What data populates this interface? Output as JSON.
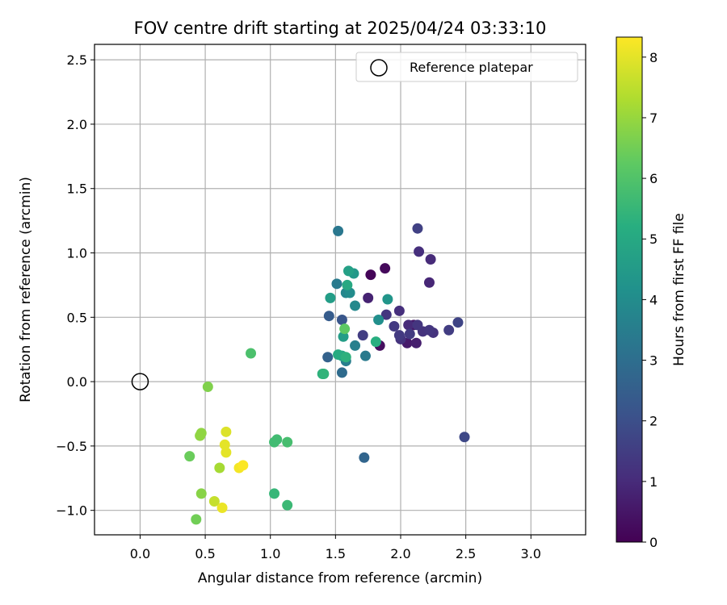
{
  "chart_data": {
    "type": "scatter",
    "title": "FOV centre drift starting at 2025/04/24 03:33:10",
    "xlabel": "Angular distance from reference (arcmin)",
    "ylabel": "Rotation from reference (arcmin)",
    "xlim": [
      -0.35,
      3.42
    ],
    "ylim": [
      -1.19,
      2.62
    ],
    "xticks": [
      0.0,
      0.5,
      1.0,
      1.5,
      2.0,
      2.5,
      3.0
    ],
    "xtick_labels": [
      "0.0",
      "0.5",
      "1.0",
      "1.5",
      "2.0",
      "2.5",
      "3.0"
    ],
    "yticks": [
      -1.0,
      -0.5,
      0.0,
      0.5,
      1.0,
      1.5,
      2.0,
      2.5
    ],
    "ytick_labels": [
      "−1.0",
      "−0.5",
      "0.0",
      "0.5",
      "1.0",
      "1.5",
      "2.0",
      "2.5"
    ],
    "grid": true,
    "legend": {
      "position": "top-right",
      "entries": [
        "Reference platepar"
      ]
    },
    "reference_point": {
      "x": 0.0,
      "y": 0.0,
      "label": "Reference platepar"
    },
    "colorbar": {
      "label": "Hours from first FF file",
      "colormap": "viridis",
      "min": 0,
      "max": 8.33,
      "ticks": [
        0,
        1,
        2,
        3,
        4,
        5,
        6,
        7,
        8
      ],
      "tick_labels": [
        "0",
        "1",
        "2",
        "3",
        "4",
        "5",
        "6",
        "7",
        "8"
      ]
    },
    "points": [
      {
        "x": 1.77,
        "y": 0.83,
        "c": 0.1
      },
      {
        "x": 1.88,
        "y": 0.88,
        "c": 0.2
      },
      {
        "x": 1.84,
        "y": 0.28,
        "c": 0.3
      },
      {
        "x": 2.1,
        "y": 0.44,
        "c": 0.5
      },
      {
        "x": 2.05,
        "y": 0.3,
        "c": 0.6
      },
      {
        "x": 2.12,
        "y": 0.3,
        "c": 0.7
      },
      {
        "x": 1.75,
        "y": 0.65,
        "c": 0.8
      },
      {
        "x": 2.22,
        "y": 0.77,
        "c": 0.9
      },
      {
        "x": 2.06,
        "y": 0.44,
        "c": 1.0
      },
      {
        "x": 2.23,
        "y": 0.95,
        "c": 1.0
      },
      {
        "x": 1.99,
        "y": 0.55,
        "c": 1.1
      },
      {
        "x": 2.14,
        "y": 1.01,
        "c": 1.1
      },
      {
        "x": 2.0,
        "y": 0.33,
        "c": 1.2
      },
      {
        "x": 2.17,
        "y": 0.39,
        "c": 1.2
      },
      {
        "x": 2.25,
        "y": 0.38,
        "c": 1.2
      },
      {
        "x": 1.89,
        "y": 0.52,
        "c": 1.3
      },
      {
        "x": 2.13,
        "y": 0.44,
        "c": 1.3
      },
      {
        "x": 2.22,
        "y": 0.4,
        "c": 1.3
      },
      {
        "x": 1.95,
        "y": 0.43,
        "c": 1.4
      },
      {
        "x": 1.99,
        "y": 0.36,
        "c": 1.4
      },
      {
        "x": 2.07,
        "y": 0.37,
        "c": 1.4
      },
      {
        "x": 2.37,
        "y": 0.4,
        "c": 1.5
      },
      {
        "x": 1.71,
        "y": 0.36,
        "c": 1.5
      },
      {
        "x": 2.13,
        "y": 1.19,
        "c": 1.6
      },
      {
        "x": 2.44,
        "y": 0.46,
        "c": 1.7
      },
      {
        "x": 2.49,
        "y": -0.43,
        "c": 1.8
      },
      {
        "x": 1.55,
        "y": 0.48,
        "c": 2.2
      },
      {
        "x": 1.45,
        "y": 0.51,
        "c": 2.4
      },
      {
        "x": 1.44,
        "y": 0.19,
        "c": 2.6
      },
      {
        "x": 1.72,
        "y": -0.59,
        "c": 2.7
      },
      {
        "x": 1.55,
        "y": 0.07,
        "c": 2.9
      },
      {
        "x": 1.52,
        "y": 1.17,
        "c": 3.3
      },
      {
        "x": 1.51,
        "y": 0.76,
        "c": 3.4
      },
      {
        "x": 1.73,
        "y": 0.2,
        "c": 3.4
      },
      {
        "x": 1.58,
        "y": 0.16,
        "c": 3.5
      },
      {
        "x": 1.65,
        "y": 0.28,
        "c": 3.6
      },
      {
        "x": 1.58,
        "y": 0.69,
        "c": 3.8
      },
      {
        "x": 1.65,
        "y": 0.59,
        "c": 3.9
      },
      {
        "x": 1.61,
        "y": 0.69,
        "c": 4.0
      },
      {
        "x": 1.83,
        "y": 0.48,
        "c": 4.1
      },
      {
        "x": 1.9,
        "y": 0.64,
        "c": 4.3
      },
      {
        "x": 1.64,
        "y": 0.84,
        "c": 4.4
      },
      {
        "x": 1.56,
        "y": 0.35,
        "c": 4.6
      },
      {
        "x": 1.46,
        "y": 0.65,
        "c": 4.6
      },
      {
        "x": 1.6,
        "y": 0.86,
        "c": 4.7
      },
      {
        "x": 1.55,
        "y": 0.2,
        "c": 4.8
      },
      {
        "x": 1.59,
        "y": 0.75,
        "c": 5.0
      },
      {
        "x": 1.52,
        "y": 0.21,
        "c": 5.1
      },
      {
        "x": 1.81,
        "y": 0.31,
        "c": 5.2
      },
      {
        "x": 1.58,
        "y": 0.19,
        "c": 5.3
      },
      {
        "x": 1.4,
        "y": 0.06,
        "c": 5.3
      },
      {
        "x": 1.41,
        "y": 0.06,
        "c": 5.4
      },
      {
        "x": 1.03,
        "y": -0.87,
        "c": 5.5
      },
      {
        "x": 1.13,
        "y": -0.96,
        "c": 5.6
      },
      {
        "x": 1.03,
        "y": -0.47,
        "c": 5.7
      },
      {
        "x": 1.05,
        "y": -0.45,
        "c": 5.7
      },
      {
        "x": 1.13,
        "y": -0.47,
        "c": 5.8
      },
      {
        "x": 0.85,
        "y": 0.22,
        "c": 5.9
      },
      {
        "x": 1.57,
        "y": 0.41,
        "c": 6.2
      },
      {
        "x": 0.38,
        "y": -0.58,
        "c": 6.4
      },
      {
        "x": 0.43,
        "y": -1.07,
        "c": 6.5
      },
      {
        "x": 0.52,
        "y": -0.04,
        "c": 6.7
      },
      {
        "x": 0.47,
        "y": -0.87,
        "c": 6.8
      },
      {
        "x": 0.47,
        "y": -0.4,
        "c": 6.9
      },
      {
        "x": 0.46,
        "y": -0.42,
        "c": 6.9
      },
      {
        "x": 0.61,
        "y": -0.67,
        "c": 7.2
      },
      {
        "x": 0.57,
        "y": -0.93,
        "c": 7.6
      },
      {
        "x": 0.66,
        "y": -0.39,
        "c": 7.9
      },
      {
        "x": 0.65,
        "y": -0.49,
        "c": 8.0
      },
      {
        "x": 0.66,
        "y": -0.55,
        "c": 8.0
      },
      {
        "x": 0.63,
        "y": -0.98,
        "c": 8.1
      },
      {
        "x": 0.76,
        "y": -0.67,
        "c": 8.2
      },
      {
        "x": 0.79,
        "y": -0.65,
        "c": 8.3
      }
    ]
  }
}
